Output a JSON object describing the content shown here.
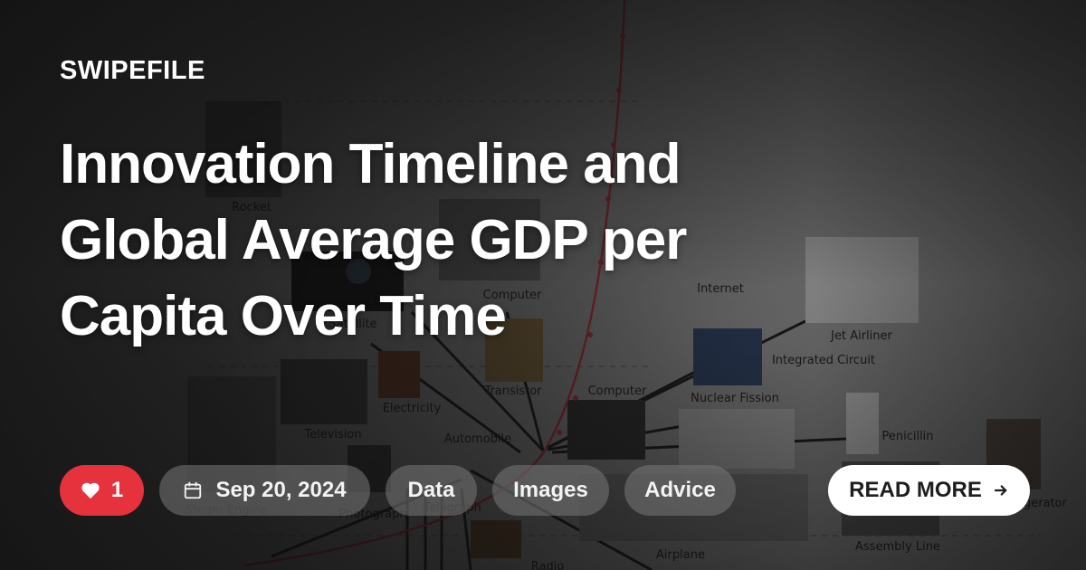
{
  "brand": "SWIPEFILE",
  "title": "Innovation Timeline and Global Average GDP per Capita Over Time",
  "likes": {
    "count": "1",
    "icon": "heart-icon"
  },
  "date": {
    "text": "Sep 20, 2024",
    "icon": "calendar-icon"
  },
  "tags": [
    "Data",
    "Images",
    "Advice"
  ],
  "cta": {
    "label": "READ MORE",
    "icon": "arrow-right-icon"
  },
  "background": {
    "innovations": [
      "Rocket",
      "Satellite",
      "Computer",
      "Internet",
      "Jet Airliner",
      "Integrated Circuit",
      "Nuclear Fission",
      "Transistor",
      "Television",
      "Electricity",
      "Automobile",
      "Penicillin",
      "Steam Engine",
      "Photograph",
      "Telegraph",
      "Airplane",
      "Assembly Line",
      "Radio",
      "Refrigerator"
    ]
  },
  "colors": {
    "like": "#e5323d",
    "cta_bg": "#ffffff",
    "cta_text": "#1e1e1e",
    "curve": "#c0303a"
  }
}
